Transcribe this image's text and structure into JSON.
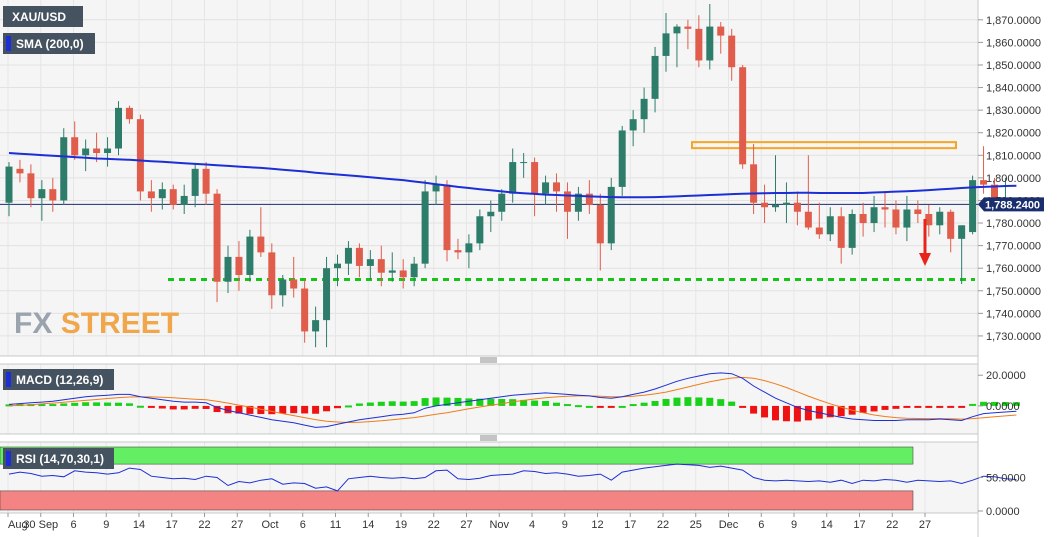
{
  "chart_data": [
    {
      "type": "candlestick",
      "symbol": "XAU/USD",
      "indicator_label": "SMA (200,0)",
      "watermark": "FXSTREET",
      "last_price_label": "1,788.2400",
      "last_price": 1788.24,
      "ylim": [
        1722,
        1877
      ],
      "ytick_labels": [
        "1,730.0000",
        "1,740.0000",
        "1,750.0000",
        "1,760.0000",
        "1,770.0000",
        "1,780.0000",
        "1,790.0000",
        "1,800.0000",
        "1,810.0000",
        "1,820.0000",
        "1,830.0000",
        "1,840.0000",
        "1,850.0000",
        "1,860.0000",
        "1,870.0000"
      ],
      "yticks": [
        1730,
        1740,
        1750,
        1760,
        1770,
        1780,
        1790,
        1800,
        1810,
        1820,
        1830,
        1840,
        1850,
        1860,
        1870
      ],
      "colors": {
        "up": "#2e7d6b",
        "down": "#e05c4b",
        "sma": "#1c2fd6",
        "support": "#19c419",
        "resistance": "#f5a623",
        "arrow": "#e8231a"
      },
      "candles": [
        {
          "o": 1789,
          "h": 1807,
          "l": 1783,
          "c": 1805
        },
        {
          "o": 1804,
          "h": 1808,
          "l": 1798,
          "c": 1802
        },
        {
          "o": 1802,
          "h": 1806,
          "l": 1787,
          "c": 1791
        },
        {
          "o": 1791,
          "h": 1799,
          "l": 1781,
          "c": 1795
        },
        {
          "o": 1795,
          "h": 1800,
          "l": 1785,
          "c": 1790
        },
        {
          "o": 1790,
          "h": 1822,
          "l": 1788,
          "c": 1818
        },
        {
          "o": 1818,
          "h": 1825,
          "l": 1808,
          "c": 1810
        },
        {
          "o": 1810,
          "h": 1817,
          "l": 1803,
          "c": 1813
        },
        {
          "o": 1813,
          "h": 1820,
          "l": 1807,
          "c": 1811
        },
        {
          "o": 1811,
          "h": 1818,
          "l": 1805,
          "c": 1813
        },
        {
          "o": 1813,
          "h": 1834,
          "l": 1810,
          "c": 1831
        },
        {
          "o": 1831,
          "h": 1832,
          "l": 1824,
          "c": 1826
        },
        {
          "o": 1826,
          "h": 1828,
          "l": 1790,
          "c": 1794
        },
        {
          "o": 1794,
          "h": 1799,
          "l": 1785,
          "c": 1791
        },
        {
          "o": 1791,
          "h": 1798,
          "l": 1786,
          "c": 1795
        },
        {
          "o": 1795,
          "h": 1797,
          "l": 1786,
          "c": 1788
        },
        {
          "o": 1788,
          "h": 1797,
          "l": 1784,
          "c": 1792
        },
        {
          "o": 1792,
          "h": 1806,
          "l": 1787,
          "c": 1804
        },
        {
          "o": 1804,
          "h": 1807,
          "l": 1788,
          "c": 1793
        },
        {
          "o": 1793,
          "h": 1795,
          "l": 1745,
          "c": 1754
        },
        {
          "o": 1754,
          "h": 1770,
          "l": 1749,
          "c": 1765
        },
        {
          "o": 1765,
          "h": 1772,
          "l": 1750,
          "c": 1757
        },
        {
          "o": 1757,
          "h": 1777,
          "l": 1754,
          "c": 1774
        },
        {
          "o": 1774,
          "h": 1787,
          "l": 1765,
          "c": 1767
        },
        {
          "o": 1767,
          "h": 1771,
          "l": 1742,
          "c": 1748
        },
        {
          "o": 1748,
          "h": 1757,
          "l": 1743,
          "c": 1755
        },
        {
          "o": 1755,
          "h": 1765,
          "l": 1747,
          "c": 1751
        },
        {
          "o": 1751,
          "h": 1755,
          "l": 1727,
          "c": 1732
        },
        {
          "o": 1732,
          "h": 1743,
          "l": 1725,
          "c": 1737
        },
        {
          "o": 1737,
          "h": 1765,
          "l": 1725,
          "c": 1760
        },
        {
          "o": 1760,
          "h": 1766,
          "l": 1752,
          "c": 1762
        },
        {
          "o": 1762,
          "h": 1772,
          "l": 1757,
          "c": 1769
        },
        {
          "o": 1769,
          "h": 1771,
          "l": 1756,
          "c": 1761
        },
        {
          "o": 1761,
          "h": 1768,
          "l": 1755,
          "c": 1764
        },
        {
          "o": 1764,
          "h": 1770,
          "l": 1752,
          "c": 1758
        },
        {
          "o": 1758,
          "h": 1767,
          "l": 1754,
          "c": 1759
        },
        {
          "o": 1759,
          "h": 1764,
          "l": 1751,
          "c": 1756
        },
        {
          "o": 1756,
          "h": 1765,
          "l": 1752,
          "c": 1762
        },
        {
          "o": 1762,
          "h": 1799,
          "l": 1760,
          "c": 1794
        },
        {
          "o": 1794,
          "h": 1801,
          "l": 1788,
          "c": 1797
        },
        {
          "o": 1797,
          "h": 1799,
          "l": 1763,
          "c": 1768
        },
        {
          "o": 1768,
          "h": 1773,
          "l": 1764,
          "c": 1767
        },
        {
          "o": 1767,
          "h": 1775,
          "l": 1760,
          "c": 1771
        },
        {
          "o": 1771,
          "h": 1786,
          "l": 1768,
          "c": 1783
        },
        {
          "o": 1783,
          "h": 1790,
          "l": 1776,
          "c": 1785
        },
        {
          "o": 1785,
          "h": 1795,
          "l": 1781,
          "c": 1793
        },
        {
          "o": 1793,
          "h": 1813,
          "l": 1789,
          "c": 1807
        },
        {
          "o": 1807,
          "h": 1811,
          "l": 1800,
          "c": 1807
        },
        {
          "o": 1807,
          "h": 1809,
          "l": 1783,
          "c": 1793
        },
        {
          "o": 1793,
          "h": 1801,
          "l": 1788,
          "c": 1798
        },
        {
          "o": 1798,
          "h": 1802,
          "l": 1785,
          "c": 1794
        },
        {
          "o": 1794,
          "h": 1798,
          "l": 1773,
          "c": 1785
        },
        {
          "o": 1785,
          "h": 1796,
          "l": 1781,
          "c": 1793
        },
        {
          "o": 1793,
          "h": 1799,
          "l": 1784,
          "c": 1788
        },
        {
          "o": 1788,
          "h": 1793,
          "l": 1759,
          "c": 1771
        },
        {
          "o": 1771,
          "h": 1800,
          "l": 1768,
          "c": 1796
        },
        {
          "o": 1796,
          "h": 1823,
          "l": 1792,
          "c": 1821
        },
        {
          "o": 1821,
          "h": 1830,
          "l": 1814,
          "c": 1826
        },
        {
          "o": 1826,
          "h": 1840,
          "l": 1820,
          "c": 1835
        },
        {
          "o": 1835,
          "h": 1858,
          "l": 1829,
          "c": 1854
        },
        {
          "o": 1854,
          "h": 1873,
          "l": 1847,
          "c": 1864
        },
        {
          "o": 1864,
          "h": 1868,
          "l": 1849,
          "c": 1867
        },
        {
          "o": 1867,
          "h": 1870,
          "l": 1857,
          "c": 1866
        },
        {
          "o": 1866,
          "h": 1872,
          "l": 1849,
          "c": 1852
        },
        {
          "o": 1852,
          "h": 1877,
          "l": 1848,
          "c": 1867
        },
        {
          "o": 1867,
          "h": 1869,
          "l": 1855,
          "c": 1863
        },
        {
          "o": 1863,
          "h": 1866,
          "l": 1843,
          "c": 1849
        },
        {
          "o": 1849,
          "h": 1850,
          "l": 1804,
          "c": 1806
        },
        {
          "o": 1806,
          "h": 1815,
          "l": 1784,
          "c": 1789
        },
        {
          "o": 1789,
          "h": 1797,
          "l": 1780,
          "c": 1787
        },
        {
          "o": 1787,
          "h": 1810,
          "l": 1785,
          "c": 1788
        },
        {
          "o": 1788,
          "h": 1798,
          "l": 1780,
          "c": 1789
        },
        {
          "o": 1789,
          "h": 1794,
          "l": 1779,
          "c": 1785
        },
        {
          "o": 1785,
          "h": 1810,
          "l": 1777,
          "c": 1778
        },
        {
          "o": 1778,
          "h": 1789,
          "l": 1773,
          "c": 1775
        },
        {
          "o": 1775,
          "h": 1787,
          "l": 1772,
          "c": 1783
        },
        {
          "o": 1783,
          "h": 1787,
          "l": 1762,
          "c": 1769
        },
        {
          "o": 1769,
          "h": 1786,
          "l": 1766,
          "c": 1784
        },
        {
          "o": 1784,
          "h": 1789,
          "l": 1774,
          "c": 1780
        },
        {
          "o": 1780,
          "h": 1792,
          "l": 1776,
          "c": 1787
        },
        {
          "o": 1787,
          "h": 1794,
          "l": 1778,
          "c": 1786
        },
        {
          "o": 1786,
          "h": 1790,
          "l": 1775,
          "c": 1778
        },
        {
          "o": 1778,
          "h": 1792,
          "l": 1772,
          "c": 1786
        },
        {
          "o": 1786,
          "h": 1790,
          "l": 1780,
          "c": 1784
        },
        {
          "o": 1784,
          "h": 1788,
          "l": 1774,
          "c": 1779
        },
        {
          "o": 1779,
          "h": 1787,
          "l": 1775,
          "c": 1785
        },
        {
          "o": 1785,
          "h": 1786,
          "l": 1767,
          "c": 1773
        },
        {
          "o": 1773,
          "h": 1779,
          "l": 1753,
          "c": 1779
        },
        {
          "o": 1776,
          "h": 1801,
          "l": 1775,
          "c": 1799
        },
        {
          "o": 1799,
          "h": 1814,
          "l": 1793,
          "c": 1797
        },
        {
          "o": 1797,
          "h": 1800,
          "l": 1786,
          "c": 1788
        },
        {
          "o": 1788,
          "h": 1800,
          "l": 1786,
          "c": 1788
        },
        {
          "o": 1788,
          "h": 1791,
          "l": 1787,
          "c": 1789
        }
      ],
      "sma": [
        1811,
        1810.7,
        1810.4,
        1810.1,
        1809.8,
        1809.5,
        1809.2,
        1808.9,
        1808.6,
        1808.4,
        1808.2,
        1808,
        1807.7,
        1807.4,
        1807.1,
        1806.8,
        1806.5,
        1806.2,
        1805.9,
        1805.6,
        1805.3,
        1805,
        1804.7,
        1804.4,
        1804,
        1803.6,
        1803.2,
        1802.8,
        1802.3,
        1801.9,
        1801.5,
        1801.1,
        1800.7,
        1800.3,
        1799.8,
        1799.4,
        1799,
        1798.4,
        1797.8,
        1797.2,
        1796.6,
        1796,
        1795.5,
        1795,
        1794.5,
        1794,
        1793.5,
        1793.2,
        1792.9,
        1792.6,
        1792.4,
        1792.2,
        1792,
        1791.8,
        1791.6,
        1791.5,
        1791.4,
        1791.4,
        1791.4,
        1791.5,
        1791.6,
        1791.8,
        1792,
        1792.2,
        1792.4,
        1792.6,
        1792.8,
        1793,
        1793.1,
        1793.2,
        1793.3,
        1793.3,
        1793.4,
        1793.4,
        1793.3,
        1793.3,
        1793.3,
        1793.3,
        1793.3,
        1793.5,
        1793.7,
        1793.9,
        1794.1,
        1794.3,
        1794.6,
        1794.9,
        1795.2,
        1795.5,
        1795.8,
        1796,
        1796.2,
        1796.4,
        1796.5
      ],
      "support_level": 1755,
      "resistance_level": 1814.5,
      "xtick_labels": [
        "Aug",
        "30 Sep",
        "6",
        "9",
        "14",
        "17",
        "22",
        "27",
        "Oct",
        "6",
        "11",
        "14",
        "19",
        "22",
        "27",
        "Nov",
        "4",
        "9",
        "12",
        "17",
        "22",
        "25",
        "Dec",
        "6",
        "9",
        "14",
        "17",
        "22",
        "27"
      ]
    },
    {
      "type": "macd",
      "label": "MACD (12,26,9)",
      "ylim": [
        -17,
        26
      ],
      "ytick_labels": [
        "20.0000",
        "0.0000"
      ],
      "yticks": [
        20,
        0
      ],
      "macd": [
        1,
        1.5,
        2,
        2.5,
        3,
        4,
        5,
        6,
        6.5,
        7,
        7.5,
        7.5,
        6,
        5,
        4,
        3,
        2.5,
        2.5,
        2,
        -1,
        -3,
        -4.5,
        -6,
        -7.5,
        -9,
        -10,
        -11,
        -12.5,
        -14,
        -13.5,
        -12,
        -10.5,
        -9,
        -8,
        -7,
        -6,
        -5.5,
        -4.5,
        -1.5,
        0,
        1,
        2,
        3,
        4,
        5,
        6,
        7,
        7.5,
        8,
        8.5,
        8,
        7.5,
        7,
        6.5,
        5.5,
        5,
        6,
        7.5,
        9,
        11,
        13.5,
        16,
        18,
        19.5,
        21,
        21.5,
        21,
        18,
        13,
        9,
        5,
        2,
        -1,
        -3,
        -4.5,
        -6,
        -7.5,
        -8.5,
        -9,
        -9.5,
        -9.5,
        -9.5,
        -9,
        -9,
        -9,
        -8.5,
        -9,
        -9.5,
        -7,
        -5,
        -4.5,
        -4,
        -3.5
      ],
      "signal": [
        0,
        0.3,
        0.8,
        1.3,
        1.8,
        2.4,
        3,
        3.6,
        4.2,
        4.8,
        5.4,
        5.8,
        5.9,
        5.9,
        5.7,
        5.3,
        4.8,
        4.4,
        4,
        3,
        1.8,
        0.5,
        -0.8,
        -2.2,
        -3.6,
        -5,
        -6.3,
        -7.6,
        -8.9,
        -10,
        -10.5,
        -10.8,
        -10.6,
        -10.2,
        -9.7,
        -9,
        -8.3,
        -7.6,
        -6.6,
        -5.5,
        -4.4,
        -3.2,
        -1.9,
        -0.7,
        0.4,
        1.5,
        2.6,
        3.6,
        4.5,
        5.3,
        5.9,
        6.3,
        6.5,
        6.5,
        6.3,
        6,
        6,
        6.3,
        6.9,
        7.8,
        9,
        10.6,
        12.3,
        14,
        15.7,
        17.1,
        18.2,
        18.6,
        18,
        16.5,
        14.4,
        12,
        9.2,
        6.4,
        3.8,
        1.4,
        -0.8,
        -2.8,
        -4.5,
        -5.9,
        -6.9,
        -7.6,
        -8,
        -8.2,
        -8.3,
        -8.3,
        -8.4,
        -8.6,
        -8.3,
        -7.7,
        -7.1,
        -6.5,
        -5.9
      ]
    },
    {
      "type": "rsi",
      "label": "RSI (14,70,30,1)",
      "ylim": [
        0,
        100
      ],
      "ytick_labels": [
        "50.0000",
        "0.0000"
      ],
      "yticks": [
        50,
        0
      ],
      "upper_band": 70,
      "lower_band": 30,
      "colors": {
        "upper_zone": "#63ee63",
        "lower_zone": "#f48484"
      },
      "rsi": [
        55,
        58,
        56,
        52,
        53,
        51,
        60,
        58,
        57,
        55,
        57,
        64,
        62,
        52,
        50,
        48,
        49,
        47,
        52,
        50,
        38,
        44,
        42,
        46,
        48,
        40,
        42,
        41,
        34,
        36,
        30,
        48,
        50,
        52,
        50,
        49,
        50,
        48,
        50,
        60,
        61,
        48,
        47,
        49,
        53,
        54,
        55,
        60,
        59,
        56,
        57,
        55,
        52,
        53,
        55,
        46,
        58,
        61,
        64,
        66,
        68,
        70,
        69,
        68,
        65,
        67,
        64,
        61,
        50,
        46,
        45,
        46,
        45,
        44,
        45,
        43,
        46,
        41,
        46,
        45,
        47,
        46,
        43,
        46,
        45,
        44,
        45,
        41,
        46,
        52,
        51,
        48,
        47
      ]
    }
  ]
}
